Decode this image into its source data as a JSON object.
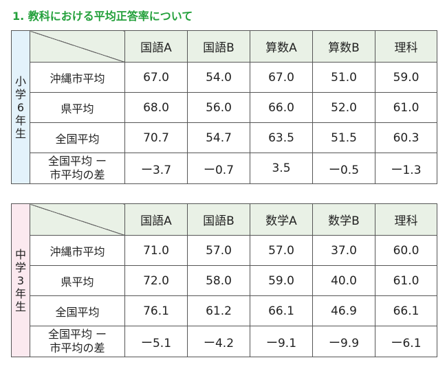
{
  "heading": "1. 教科における平均正答率について",
  "elementary": {
    "side_label": "小学6年生",
    "headers": [
      "国語A",
      "国語B",
      "算数A",
      "算数B",
      "理科"
    ],
    "rows": [
      {
        "label": "沖縄市平均",
        "values": [
          "67.0",
          "54.0",
          "67.0",
          "51.0",
          "59.0"
        ]
      },
      {
        "label": "県平均",
        "values": [
          "68.0",
          "56.0",
          "66.0",
          "52.0",
          "61.0"
        ]
      },
      {
        "label": "全国平均",
        "values": [
          "70.7",
          "54.7",
          "63.5",
          "51.5",
          "60.3"
        ]
      },
      {
        "label_line1": "全国平均 ー",
        "label_line2": "市平均の差",
        "values": [
          "ー3.7",
          "ー0.7",
          "3.5",
          "ー0.5",
          "ー1.3"
        ]
      }
    ]
  },
  "junior": {
    "side_label": "中学3年生",
    "headers": [
      "国語A",
      "国語B",
      "数学A",
      "数学B",
      "理科"
    ],
    "rows": [
      {
        "label": "沖縄市平均",
        "values": [
          "71.0",
          "57.0",
          "57.0",
          "37.0",
          "60.0"
        ]
      },
      {
        "label": "県平均",
        "values": [
          "72.0",
          "58.0",
          "59.0",
          "40.0",
          "61.0"
        ]
      },
      {
        "label": "全国平均",
        "values": [
          "76.1",
          "61.2",
          "66.1",
          "46.9",
          "66.1"
        ]
      },
      {
        "label_line1": "全国平均 ー",
        "label_line2": "市平均の差",
        "values": [
          "ー5.1",
          "ー4.2",
          "ー9.1",
          "ー9.9",
          "ー6.1"
        ]
      }
    ]
  }
}
